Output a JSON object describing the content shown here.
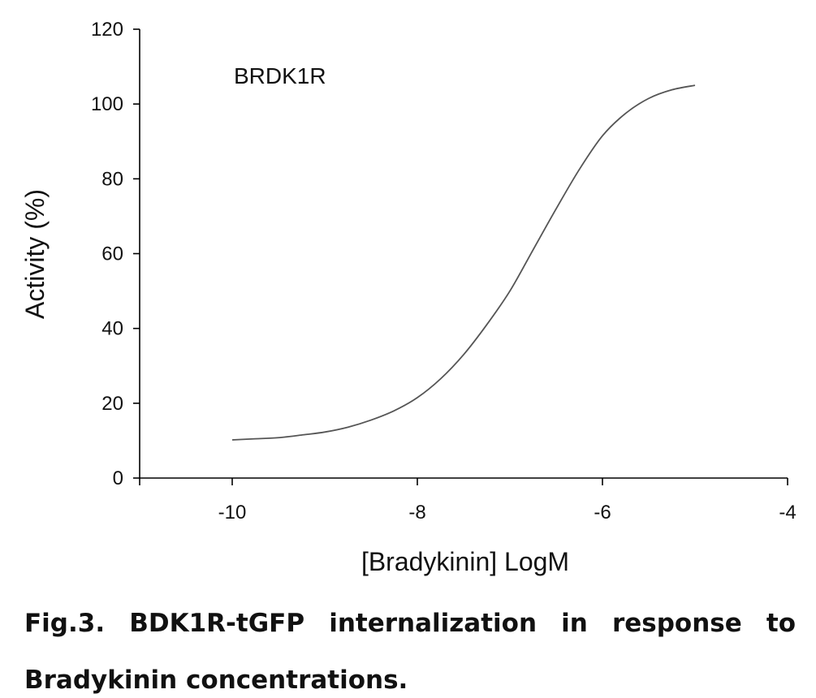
{
  "chart_data": {
    "type": "line",
    "title": "",
    "annotation": "BRDK1R",
    "xlabel": "[Bradykinin] LogM",
    "ylabel": "Activity (%)",
    "xlim": [
      -11,
      -4
    ],
    "ylim": [
      0,
      120
    ],
    "xticks": [
      -10,
      -8,
      -6,
      -4
    ],
    "yticks": [
      0,
      20,
      40,
      60,
      80,
      100,
      120
    ],
    "grid": false,
    "legend": "none",
    "line_color": "#555555",
    "series": [
      {
        "x": [
          -10.0,
          -9.75,
          -9.5,
          -9.25,
          -9.0,
          -8.75,
          -8.5,
          -8.25,
          -8.0,
          -7.75,
          -7.5,
          -7.25,
          -7.0,
          -6.75,
          -6.5,
          -6.25,
          -6.0,
          -5.75,
          -5.5,
          -5.25,
          -5.0
        ],
        "y": [
          10.2,
          10.5,
          10.8,
          11.5,
          12.3,
          13.6,
          15.5,
          18.0,
          21.5,
          26.5,
          33.0,
          41.0,
          50.0,
          61.0,
          72.0,
          82.5,
          91.5,
          97.5,
          101.5,
          103.8,
          105.0
        ]
      }
    ]
  },
  "caption": {
    "line1": "Fig.3. BDK1R-tGFP internalization in response to",
    "line2": "Bradykinin concentrations."
  }
}
